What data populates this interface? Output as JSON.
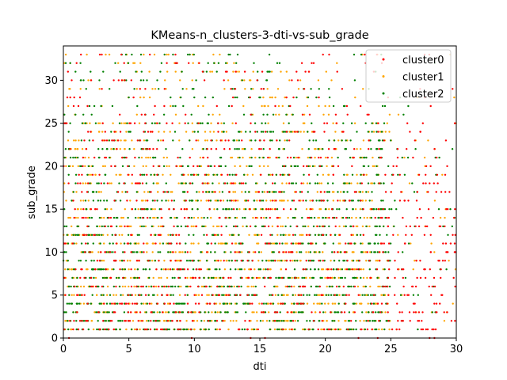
{
  "chart_data": {
    "type": "scatter",
    "title": "KMeans-n_clusters-3-dti-vs-sub_grade",
    "xlabel": "dti",
    "ylabel": "sub_grade",
    "xlim": [
      0,
      30
    ],
    "ylim": [
      0,
      34
    ],
    "xticks": [
      "0",
      "5",
      "10",
      "15",
      "20",
      "25",
      "30"
    ],
    "yticks": [
      "0",
      "5",
      "10",
      "15",
      "20",
      "25",
      "30"
    ],
    "grid": false,
    "legend_position": "top-right",
    "series": [
      {
        "name": "cluster0",
        "color": "#ff0000",
        "y_levels": [
          0,
          1,
          2,
          3,
          4,
          5,
          6,
          7,
          8,
          9,
          10,
          11,
          12,
          13,
          14,
          15,
          16,
          17,
          18,
          19,
          20,
          21,
          22,
          23,
          24,
          25,
          26,
          27,
          28,
          29,
          30,
          31,
          32,
          33
        ],
        "dense_x_range": [
          0,
          30
        ],
        "sparse_x_range": [
          0,
          30
        ]
      },
      {
        "name": "cluster1",
        "color": "#ffa500",
        "y_levels": [
          1,
          2,
          3,
          4,
          5,
          6,
          7,
          8,
          9,
          10,
          11,
          12,
          13,
          14,
          15,
          16,
          17,
          18,
          19,
          20,
          21,
          22,
          23,
          24,
          25,
          26,
          27,
          28,
          29,
          30,
          31,
          32,
          33
        ],
        "dense_x_range": [
          0,
          25
        ],
        "sparse_x_range": [
          0,
          30
        ]
      },
      {
        "name": "cluster2",
        "color": "#008000",
        "y_levels": [
          1,
          2,
          3,
          4,
          5,
          6,
          7,
          8,
          9,
          10,
          11,
          12,
          13,
          14,
          15,
          16,
          17,
          18,
          19,
          20,
          21,
          22,
          23,
          24,
          25,
          26,
          27,
          28,
          29,
          30,
          31,
          32,
          33
        ],
        "dense_x_range": [
          0,
          25
        ],
        "sparse_x_range": [
          0,
          30
        ]
      }
    ]
  }
}
